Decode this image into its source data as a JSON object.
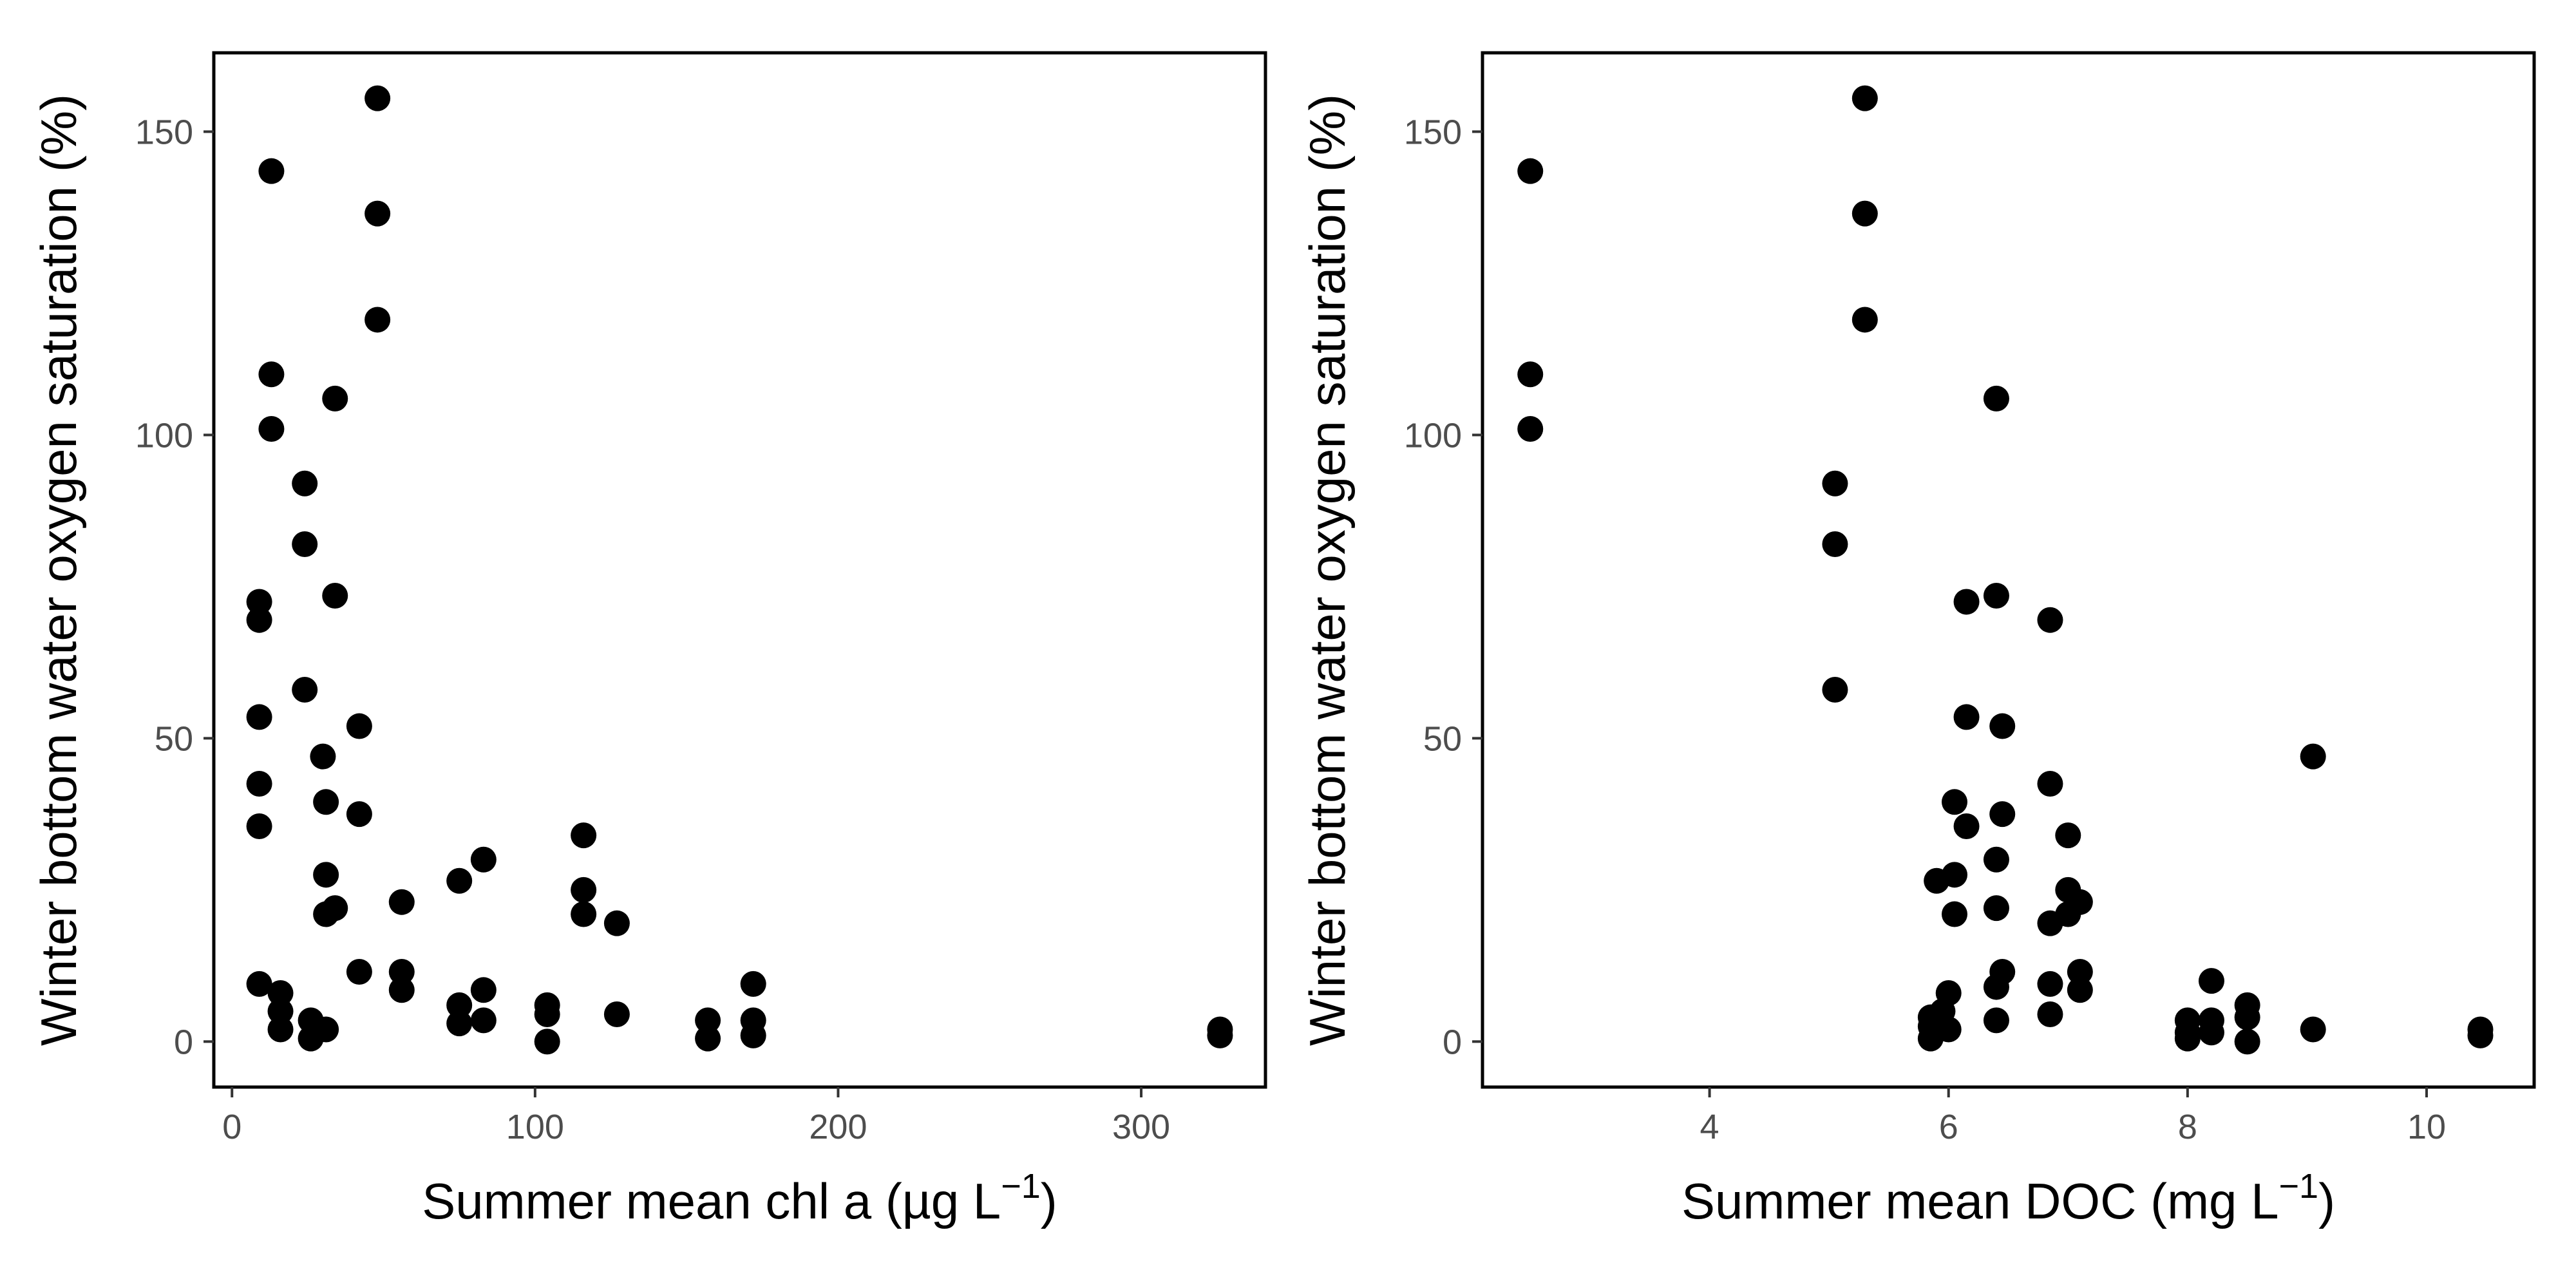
{
  "chart_data": [
    {
      "type": "scatter",
      "xlabel": "Summer mean chl a (µg L",
      "xlabel_sup": "−1",
      "xlabel_close": ")",
      "ylabel": "Winter bottom water oxygen saturation (%)",
      "xlim": [
        -6,
        341
      ],
      "ylim": [
        -7.5,
        163
      ],
      "xticks": [
        0,
        100,
        200,
        300
      ],
      "xtick_labels": [
        "0",
        "100",
        "200",
        "300"
      ],
      "yticks": [
        0,
        50,
        100,
        150
      ],
      "ytick_labels": [
        "0",
        "50",
        "100",
        "150"
      ],
      "grid": false,
      "points": [
        [
          48,
          155.5
        ],
        [
          13,
          143.5
        ],
        [
          48,
          136.5
        ],
        [
          48,
          119
        ],
        [
          13,
          110
        ],
        [
          13,
          101
        ],
        [
          34,
          106
        ],
        [
          24,
          92
        ],
        [
          24,
          82
        ],
        [
          9,
          72.5
        ],
        [
          9,
          69.5
        ],
        [
          34,
          73.5
        ],
        [
          24,
          58
        ],
        [
          9,
          53.5
        ],
        [
          42,
          52
        ],
        [
          9,
          42.5
        ],
        [
          30,
          47
        ],
        [
          9,
          35.5
        ],
        [
          42,
          37.5
        ],
        [
          31,
          39.5
        ],
        [
          31,
          27.5
        ],
        [
          31,
          21
        ],
        [
          34,
          22
        ],
        [
          56,
          23
        ],
        [
          75,
          26.5
        ],
        [
          83,
          30
        ],
        [
          116,
          34
        ],
        [
          116,
          25
        ],
        [
          116,
          21
        ],
        [
          127,
          19.5
        ],
        [
          42,
          11.5
        ],
        [
          56,
          11.5
        ],
        [
          56,
          8.5
        ],
        [
          9,
          9.5
        ],
        [
          16,
          8
        ],
        [
          16,
          5
        ],
        [
          16,
          2
        ],
        [
          26,
          3.5
        ],
        [
          26,
          0.5
        ],
        [
          31,
          2
        ],
        [
          75,
          6
        ],
        [
          75,
          3
        ],
        [
          83,
          8.5
        ],
        [
          83,
          3.5
        ],
        [
          104,
          6
        ],
        [
          104,
          4.5
        ],
        [
          104,
          0
        ],
        [
          127,
          4.5
        ],
        [
          157,
          3.5
        ],
        [
          157,
          0.5
        ],
        [
          172,
          9.5
        ],
        [
          172,
          3.5
        ],
        [
          172,
          1
        ],
        [
          326,
          2
        ],
        [
          326,
          1
        ]
      ]
    },
    {
      "type": "scatter",
      "xlabel": "Summer mean DOC (mg L",
      "xlabel_sup": "−1",
      "xlabel_close": ")",
      "ylabel": "Winter bottom water oxygen saturation (%)",
      "xlim": [
        2.1,
        10.9
      ],
      "ylim": [
        -7.5,
        163
      ],
      "xticks": [
        4,
        6,
        8,
        10
      ],
      "xtick_labels": [
        "4",
        "6",
        "8",
        "10"
      ],
      "yticks": [
        0,
        50,
        100,
        150
      ],
      "ytick_labels": [
        "0",
        "50",
        "100",
        "150"
      ],
      "grid": false,
      "points": [
        [
          2.5,
          143.5
        ],
        [
          2.5,
          110
        ],
        [
          2.5,
          101
        ],
        [
          5.3,
          155.5
        ],
        [
          5.3,
          136.5
        ],
        [
          5.3,
          119
        ],
        [
          6.4,
          106
        ],
        [
          5.05,
          92
        ],
        [
          5.05,
          82
        ],
        [
          5.05,
          58
        ],
        [
          6.15,
          72.5
        ],
        [
          6.4,
          73.5
        ],
        [
          6.85,
          69.5
        ],
        [
          6.15,
          53.5
        ],
        [
          6.45,
          52
        ],
        [
          9.05,
          47
        ],
        [
          6.85,
          42.5
        ],
        [
          6.05,
          39.5
        ],
        [
          6.45,
          37.5
        ],
        [
          6.15,
          35.5
        ],
        [
          7.0,
          34
        ],
        [
          5.9,
          26.5
        ],
        [
          6.05,
          27.5
        ],
        [
          6.4,
          30
        ],
        [
          7.0,
          25
        ],
        [
          7.1,
          23
        ],
        [
          6.05,
          21
        ],
        [
          6.4,
          22
        ],
        [
          7.0,
          21
        ],
        [
          6.85,
          19.5
        ],
        [
          6.45,
          11.5
        ],
        [
          7.1,
          11.5
        ],
        [
          6.85,
          9.5
        ],
        [
          7.1,
          8.5
        ],
        [
          6.4,
          9
        ],
        [
          6.0,
          8
        ],
        [
          5.85,
          4
        ],
        [
          5.85,
          2.5
        ],
        [
          5.85,
          0.5
        ],
        [
          5.95,
          5
        ],
        [
          6.0,
          2
        ],
        [
          6.4,
          3.5
        ],
        [
          6.85,
          4.5
        ],
        [
          8.0,
          3.5
        ],
        [
          8.0,
          1.5
        ],
        [
          8.0,
          0.5
        ],
        [
          8.2,
          10
        ],
        [
          8.2,
          3.5
        ],
        [
          8.2,
          1.5
        ],
        [
          8.5,
          6
        ],
        [
          8.5,
          4
        ],
        [
          8.5,
          0
        ],
        [
          9.05,
          2
        ],
        [
          10.45,
          2
        ],
        [
          10.45,
          1
        ]
      ]
    }
  ]
}
